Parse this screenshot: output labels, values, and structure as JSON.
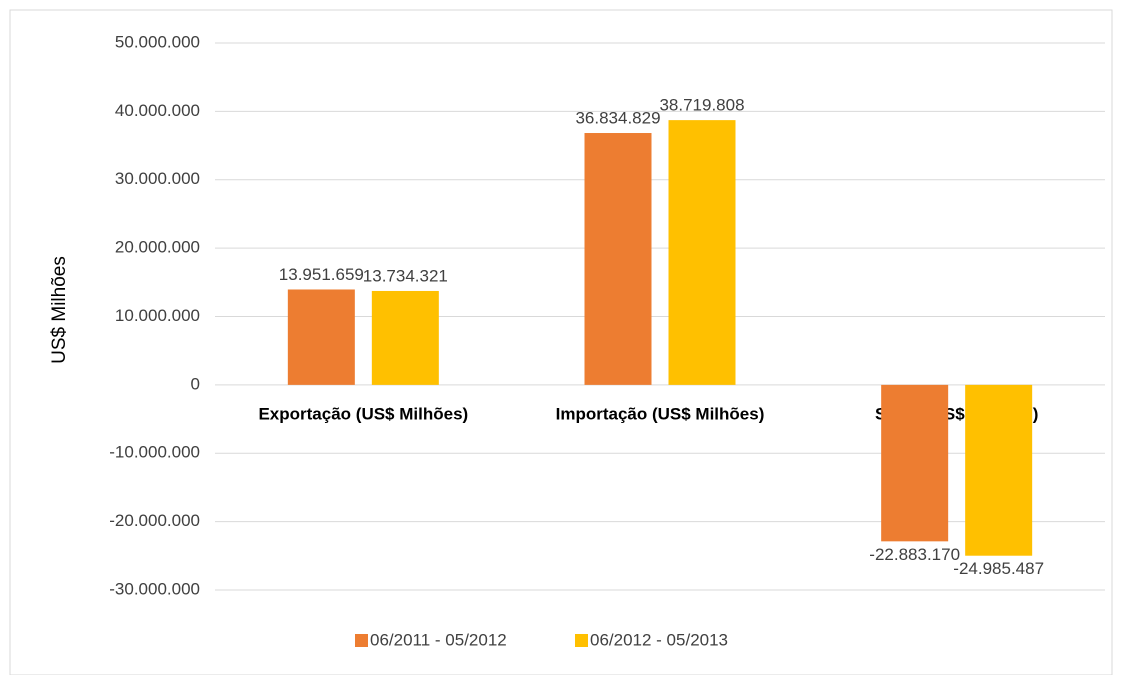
{
  "chart_data": {
    "type": "bar",
    "y_axis_label": "US$ Milhões",
    "categories": [
      "Exportação (US$ Milhões)",
      "Importação (US$ Milhões)",
      "Saldo (US$ Milhões)"
    ],
    "series": [
      {
        "name": "06/2011 - 05/2012",
        "color": "#ED7D31",
        "values": [
          13951659,
          36834829,
          -22883170
        ],
        "value_labels": [
          "13.951.659",
          "36.834.829",
          "-22.883.170"
        ]
      },
      {
        "name": "06/2012 - 05/2013",
        "color": "#FFC000",
        "values": [
          13734321,
          38719808,
          -24985487
        ],
        "value_labels": [
          "13.734.321",
          "38.719.808",
          "-24.985.487"
        ]
      }
    ],
    "ylim": [
      -30000000,
      50000000
    ],
    "yticks": [
      {
        "value": -30000000,
        "label": "-30.000.000"
      },
      {
        "value": -20000000,
        "label": "-20.000.000"
      },
      {
        "value": -10000000,
        "label": "-10.000.000"
      },
      0,
      {
        "value": 10000000,
        "label": "10.000.000"
      },
      {
        "value": 20000000,
        "label": "20.000.000"
      },
      {
        "value": 30000000,
        "label": "30.000.000"
      },
      {
        "value": 40000000,
        "label": "40.000.000"
      },
      {
        "value": 50000000,
        "label": "50.000.000"
      }
    ],
    "grid": true,
    "legend": "bottom"
  }
}
